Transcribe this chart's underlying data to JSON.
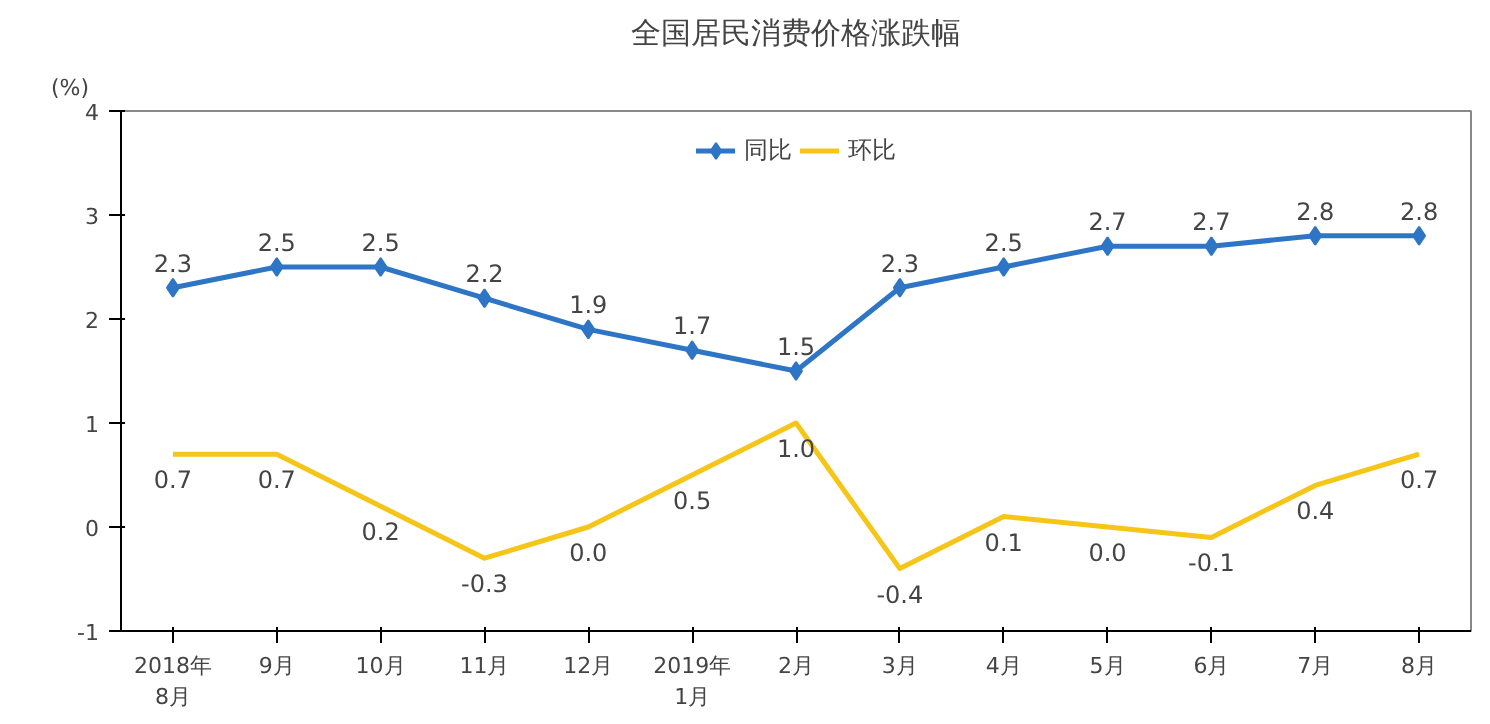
{
  "chart_data": {
    "type": "line",
    "title": "全国居民消费价格涨跌幅",
    "ylabel": "(%)",
    "categories": [
      "2018年\n8月",
      "9月",
      "10月",
      "11月",
      "12月",
      "2019年\n1月",
      "2月",
      "3月",
      "4月",
      "5月",
      "6月",
      "7月",
      "8月"
    ],
    "series": [
      {
        "name": "同比",
        "color": "#2e75c6",
        "marker": "diamond",
        "values": [
          2.3,
          2.5,
          2.5,
          2.2,
          1.9,
          1.7,
          1.5,
          2.3,
          2.5,
          2.7,
          2.7,
          2.8,
          2.8
        ]
      },
      {
        "name": "环比",
        "color": "#f5c518",
        "marker": "none",
        "values": [
          0.7,
          0.7,
          0.2,
          -0.3,
          0.0,
          0.5,
          1.0,
          -0.4,
          0.1,
          0.0,
          -0.1,
          0.4,
          0.7
        ],
        "value_labels": [
          "0.7",
          "0.7",
          "0.2",
          "-0.3",
          "0.0",
          "0.5",
          "1.0",
          "-0.4",
          "0.1",
          "0.0",
          "-0.1",
          "0.4",
          "0.7"
        ]
      }
    ],
    "ylim": [
      -1,
      4
    ],
    "yticks": [
      -1,
      0,
      1,
      2,
      3,
      4
    ],
    "legend": "top",
    "data_labels": true,
    "grid": false
  }
}
